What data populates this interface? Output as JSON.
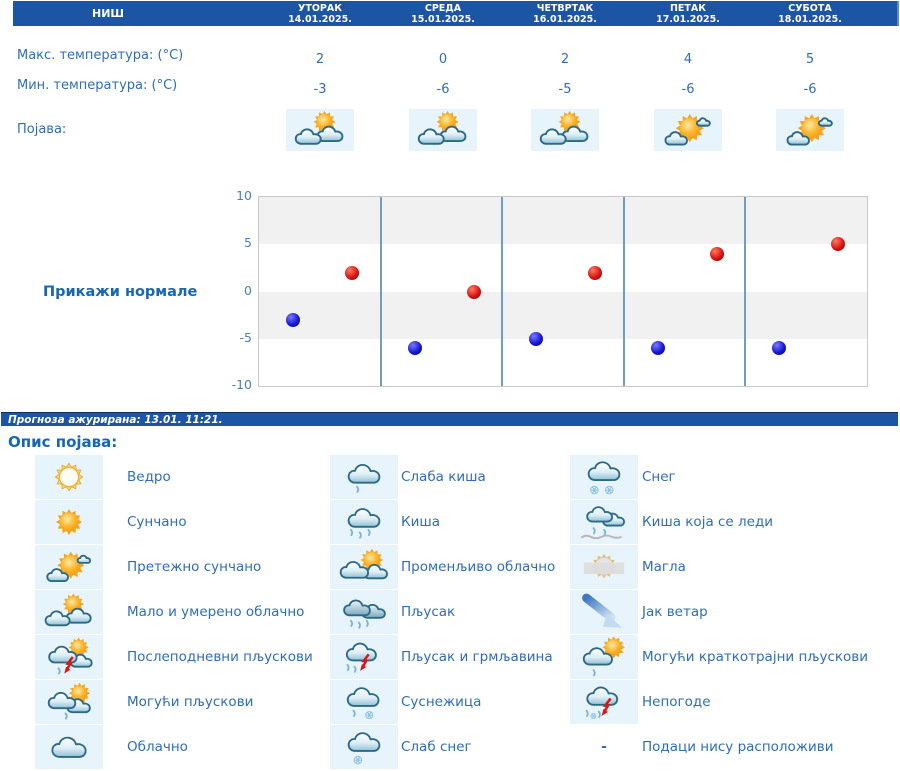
{
  "colors": {
    "header_bg": "#1d55a5",
    "text_blue": "#2e6eb8",
    "accent_blue": "#1766b5",
    "max_point": "#d91414",
    "min_point": "#1818d6",
    "tile_bg": "#e8f4fb"
  },
  "header": {
    "city": "НИШ",
    "days": [
      {
        "name": "УТОРАК",
        "date": "14.01.2025."
      },
      {
        "name": "СРЕДА",
        "date": "15.01.2025."
      },
      {
        "name": "ЧЕТВРТАК",
        "date": "16.01.2025."
      },
      {
        "name": "ПЕТАК",
        "date": "17.01.2025."
      },
      {
        "name": "СУБОТА",
        "date": "18.01.2025."
      }
    ]
  },
  "rows": {
    "max_label": "Макс. температура: (°C)",
    "min_label": "Мин. температура: (°C)",
    "phenomenon_label": "Појава:",
    "max_values": [
      2,
      0,
      2,
      4,
      5
    ],
    "min_values": [
      -3,
      -6,
      -5,
      -6,
      -6
    ],
    "phenomenon_icons": [
      "partly-cloudy",
      "partly-cloudy",
      "partly-cloudy",
      "mostly-sunny",
      "mostly-sunny"
    ]
  },
  "chart_data": {
    "type": "scatter",
    "categories": [
      "УТОРАК 14.01.2025.",
      "СРЕДА 15.01.2025.",
      "ЧЕТВРТАК 16.01.2025.",
      "ПЕТАК 17.01.2025.",
      "СУБОТА 18.01.2025."
    ],
    "series": [
      {
        "name": "Макс. температура (°C)",
        "color": "#d91414",
        "values": [
          2,
          0,
          2,
          4,
          5
        ]
      },
      {
        "name": "Мин. температура (°C)",
        "color": "#1818d6",
        "values": [
          -3,
          -6,
          -5,
          -6,
          -6
        ]
      }
    ],
    "ylim": [
      -10,
      10
    ],
    "yticks": [
      10,
      5,
      0,
      -5,
      -10
    ],
    "grid": "alternating horizontal bands with vertical day separators",
    "legend_position": "none"
  },
  "normals_button": "Прикажи нормале",
  "updated_bar": "Прогноза ажурирана:  13.01. 11:21.",
  "legend": {
    "title": "Опис појава:",
    "items": [
      {
        "icon": "clear",
        "label": "Ведро"
      },
      {
        "icon": "light-rain",
        "label": "Слаба киша"
      },
      {
        "icon": "snow",
        "label": "Снег"
      },
      {
        "icon": "sunny",
        "label": "Сунчано"
      },
      {
        "icon": "rain",
        "label": "Киша"
      },
      {
        "icon": "freezing-rain",
        "label": "Киша која се леди"
      },
      {
        "icon": "mostly-sunny",
        "label": "Претежно сунчано"
      },
      {
        "icon": "variable-cloudy",
        "label": "Променљиво облачно"
      },
      {
        "icon": "fog",
        "label": "Магла"
      },
      {
        "icon": "partly-cloudy",
        "label": "Мало и умерено облачно"
      },
      {
        "icon": "shower",
        "label": "Пљусак"
      },
      {
        "icon": "strong-wind",
        "label": "Јак ветар"
      },
      {
        "icon": "afternoon-showers",
        "label": "Послеподневни пљускови"
      },
      {
        "icon": "shower-thunder",
        "label": "Пљусак и грмљавина"
      },
      {
        "icon": "possible-brief-showers",
        "label": "Могући краткотрајни пљускови"
      },
      {
        "icon": "possible-showers",
        "label": "Могући пљускови"
      },
      {
        "icon": "sleet",
        "label": "Суснежица"
      },
      {
        "icon": "storms",
        "label": "Непогоде"
      },
      {
        "icon": "cloudy",
        "label": "Облачно"
      },
      {
        "icon": "light-snow",
        "label": "Слаб снег"
      },
      {
        "icon": "no-data",
        "label": "Подаци нису расположиви",
        "dash": "-"
      }
    ]
  }
}
